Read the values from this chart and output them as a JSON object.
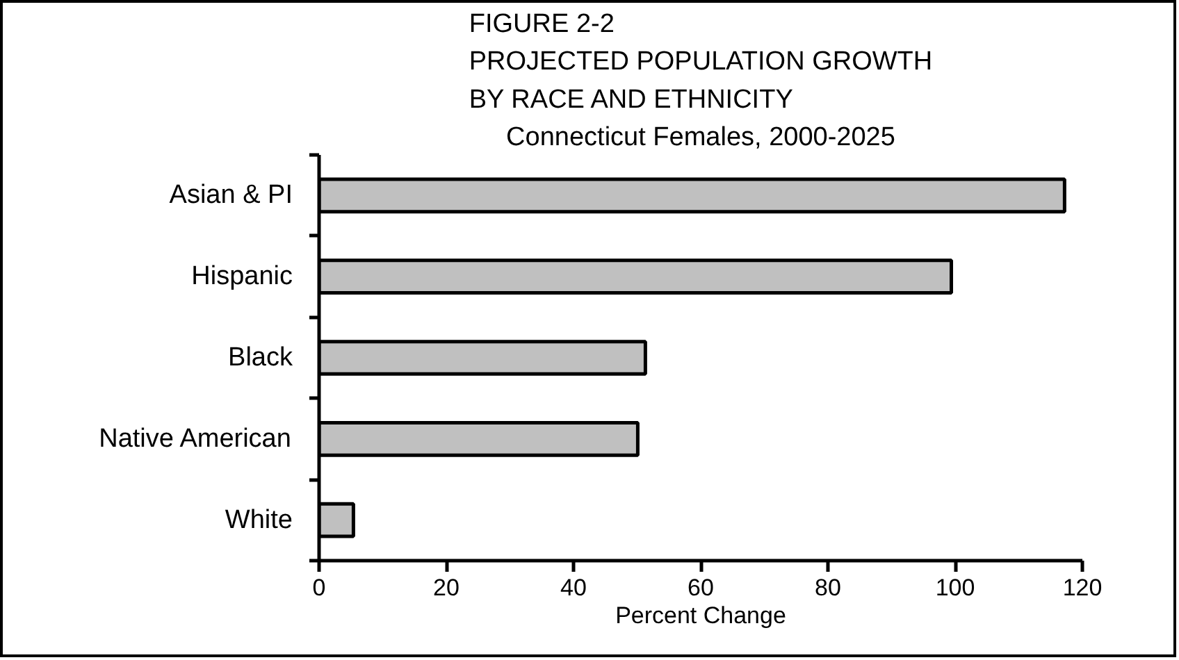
{
  "chart_data": {
    "type": "bar",
    "orientation": "horizontal",
    "title": "FIGURE 2-2\nPROJECTED POPULATION GROWTH\nBY RACE AND ETHNICITY",
    "subtitle": "Connecticut Females, 2000-2025",
    "xlabel": "Percent Change",
    "categories": [
      "Asian & PI",
      "Hispanic",
      "Black",
      "Native American",
      "White"
    ],
    "values": [
      117.2,
      99.4,
      51.3,
      50.1,
      5.4
    ],
    "color": "#c0c0c0",
    "xlim": [
      0,
      120
    ],
    "xticks": [
      0,
      20,
      40,
      60,
      80,
      100,
      120
    ],
    "grid": false
  }
}
